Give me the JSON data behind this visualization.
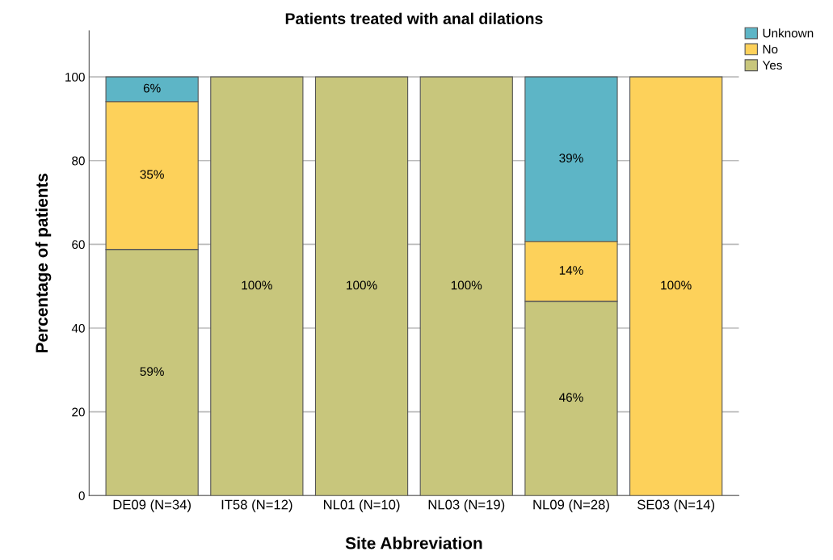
{
  "chart_data": {
    "type": "bar",
    "title": "Patients treated with anal dilations",
    "xlabel": "Site Abbreviation",
    "ylabel": "Percentage of patients",
    "categories": [
      "DE09 (N=34)",
      "IT58 (N=12)",
      "NL01 (N=10)",
      "NL03 (N=19)",
      "NL09 (N=28)",
      "SE03 (N=14)"
    ],
    "stacked": true,
    "series": [
      {
        "name": "Yes",
        "color": "#c8c67c",
        "values": [
          58.8,
          100,
          100,
          100,
          46.4,
          0
        ],
        "value_labels": [
          "59%",
          "100%",
          "100%",
          "100%",
          "46%",
          null
        ]
      },
      {
        "name": "No",
        "color": "#fdd15a",
        "values": [
          35.3,
          0,
          0,
          0,
          14.3,
          100
        ],
        "value_labels": [
          "35%",
          null,
          null,
          null,
          "14%",
          "100%"
        ]
      },
      {
        "name": "Unknown",
        "color": "#5db5c6",
        "values": [
          5.9,
          0,
          0,
          0,
          39.3,
          0
        ],
        "value_labels": [
          "6%",
          null,
          null,
          null,
          "39%",
          null
        ]
      }
    ],
    "ylim": [
      0,
      111
    ],
    "yticks": [
      0,
      20,
      40,
      60,
      80,
      100
    ],
    "grid": "y",
    "legend": "top right"
  }
}
